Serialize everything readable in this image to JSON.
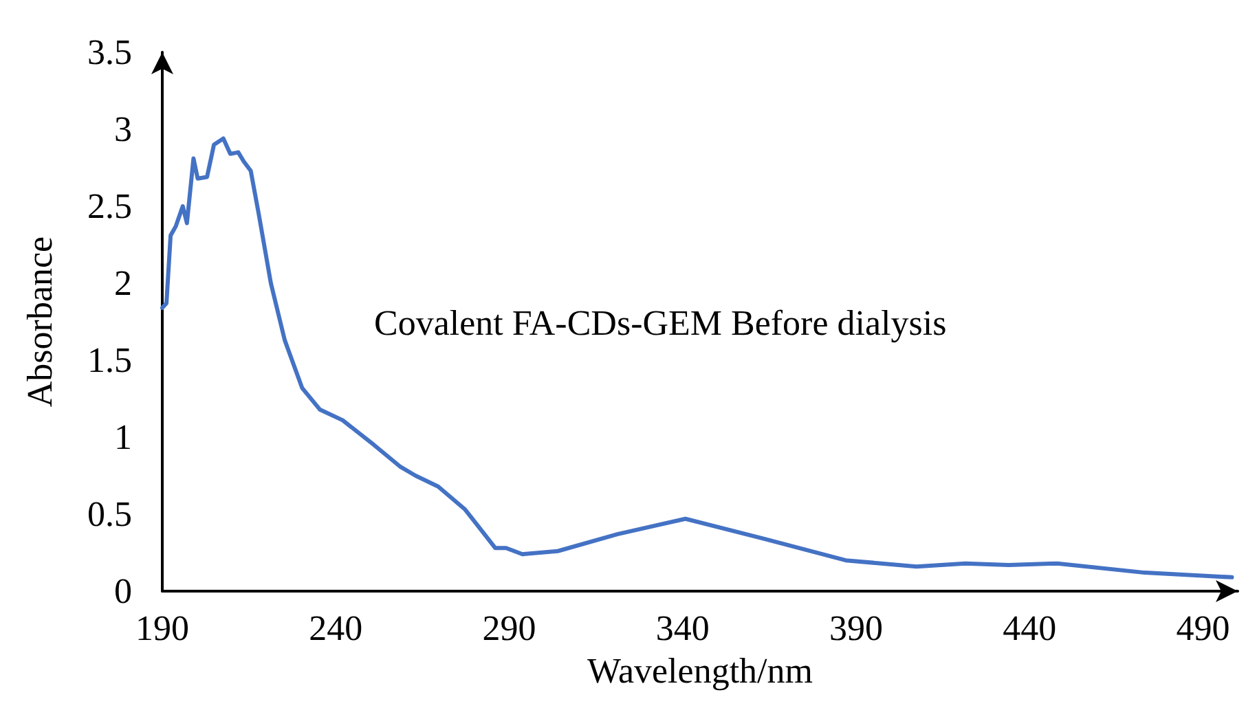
{
  "chart_data": {
    "type": "line",
    "xlabel": "Wavelength/nm",
    "ylabel": "Absorbance",
    "annotations": [
      "Covalent FA-CDs-GEM Before dialysis"
    ],
    "x": [
      190,
      191.2,
      192.4,
      193.9,
      195.9,
      197.1,
      199,
      200.2,
      202.9,
      204.9,
      207.6,
      209.6,
      211.9,
      213.5,
      215.5,
      217.8,
      221.3,
      225.3,
      230.3,
      235.4,
      242,
      251,
      258.5,
      263,
      269.5,
      277.3,
      286,
      289.1,
      293.8,
      304,
      321.2,
      340.8,
      363.5,
      387,
      407.4,
      421.5,
      434,
      448,
      473.2,
      498.3
    ],
    "series": [
      {
        "color": "#4472c4",
        "values": [
          1.84,
          1.87,
          2.31,
          2.37,
          2.5,
          2.39,
          2.81,
          2.68,
          2.69,
          2.9,
          2.94,
          2.84,
          2.85,
          2.79,
          2.73,
          2.45,
          2.0,
          1.63,
          1.32,
          1.18,
          1.11,
          0.95,
          0.81,
          0.75,
          0.68,
          0.53,
          0.28,
          0.28,
          0.24,
          0.26,
          0.37,
          0.47,
          0.34,
          0.2,
          0.16,
          0.18,
          0.17,
          0.18,
          0.12,
          0.09
        ]
      }
    ],
    "xlim": [
      190,
      500
    ],
    "xticks": [
      190,
      240,
      290,
      340,
      390,
      440,
      490
    ],
    "ylim": [
      0,
      3.5
    ],
    "yticks": [
      0,
      0.5,
      1,
      1.5,
      2,
      2.5,
      3,
      3.5
    ],
    "grid": false,
    "marker": "none",
    "line_style": "solid"
  }
}
